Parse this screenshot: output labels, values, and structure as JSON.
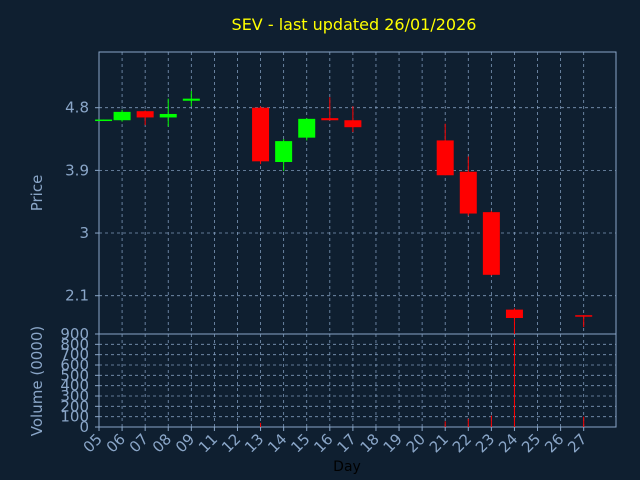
{
  "chart_data": {
    "type": "candlestick",
    "title": "SEV - last updated 26/01/2026",
    "xlabel": "Day",
    "price_panel": {
      "ylabel": "Price",
      "ylim": [
        1.55,
        5.6
      ],
      "yticks": [
        2.1,
        3,
        3.9,
        4.8
      ],
      "ytick_labels": [
        "2.1",
        "3",
        "3.9",
        "4.8"
      ],
      "grid": true
    },
    "volume_panel": {
      "ylabel": "Volume (0000)",
      "ylim": [
        0,
        900
      ],
      "yticks": [
        0,
        100,
        200,
        300,
        400,
        500,
        600,
        700,
        800,
        900
      ],
      "ytick_labels": [
        "0",
        "100",
        "200",
        "300",
        "400",
        "500",
        "600",
        "700",
        "800",
        "900"
      ],
      "grid": true
    },
    "x_ticks": [
      "05",
      "06",
      "07",
      "08",
      "09",
      "11",
      "12",
      "13",
      "14",
      "15",
      "16",
      "17",
      "18",
      "19",
      "20",
      "21",
      "22",
      "23",
      "24",
      "25",
      "26",
      "27"
    ],
    "x_tick_index": [
      0,
      1,
      2,
      3,
      4,
      5,
      6,
      7,
      8,
      9,
      10,
      11,
      12,
      13,
      14,
      15,
      16,
      17,
      18,
      19,
      20,
      21
    ],
    "xlim": [
      0,
      22.4
    ],
    "colors": {
      "up": "#00ff00",
      "down": "#ff0000",
      "volume": "#ff0000"
    },
    "candles": [
      {
        "day": "05",
        "x": 0.2,
        "open": 4.63,
        "high": 4.63,
        "low": 4.62,
        "close": 4.63
      },
      {
        "day": "06",
        "x": 1,
        "open": 4.62,
        "high": 4.77,
        "low": 4.6,
        "close": 4.74
      },
      {
        "day": "07",
        "x": 2,
        "open": 4.75,
        "high": 4.76,
        "low": 4.55,
        "close": 4.66
      },
      {
        "day": "08",
        "x": 3,
        "open": 4.66,
        "high": 4.93,
        "low": 4.53,
        "close": 4.71
      },
      {
        "day": "09",
        "x": 4,
        "open": 4.9,
        "high": 5.04,
        "low": 4.82,
        "close": 4.93
      },
      {
        "day": "12",
        "x": 7,
        "open": 4.8,
        "high": 4.82,
        "low": 3.99,
        "close": 4.03
      },
      {
        "day": "13",
        "x": 8,
        "open": 4.02,
        "high": 4.35,
        "low": 3.89,
        "close": 4.32
      },
      {
        "day": "14",
        "x": 9,
        "open": 4.37,
        "high": 4.65,
        "low": 4.33,
        "close": 4.64
      },
      {
        "day": "15",
        "x": 10,
        "open": 4.65,
        "high": 4.95,
        "low": 4.62,
        "close": 4.62
      },
      {
        "day": "16",
        "x": 11,
        "open": 4.62,
        "high": 4.82,
        "low": 4.45,
        "close": 4.52
      },
      {
        "day": "20",
        "x": 15,
        "open": 4.33,
        "high": 4.57,
        "low": 3.83,
        "close": 3.83
      },
      {
        "day": "21",
        "x": 16,
        "open": 3.88,
        "high": 4.1,
        "low": 3.25,
        "close": 3.28
      },
      {
        "day": "22",
        "x": 17,
        "open": 3.3,
        "high": 3.32,
        "low": 2.39,
        "close": 2.4
      },
      {
        "day": "23",
        "x": 18,
        "open": 1.9,
        "high": 1.92,
        "low": 1.55,
        "close": 1.78
      },
      {
        "day": "26",
        "x": 21,
        "open": 1.82,
        "high": 1.82,
        "low": 1.65,
        "close": 1.81
      }
    ],
    "volumes": [
      {
        "day": "12",
        "x": 7,
        "value": 40
      },
      {
        "day": "20",
        "x": 15,
        "value": 55
      },
      {
        "day": "21",
        "x": 16,
        "value": 80
      },
      {
        "day": "22",
        "x": 17,
        "value": 110
      },
      {
        "day": "23",
        "x": 18,
        "value": 850
      },
      {
        "day": "26",
        "x": 21,
        "value": 100
      }
    ]
  }
}
